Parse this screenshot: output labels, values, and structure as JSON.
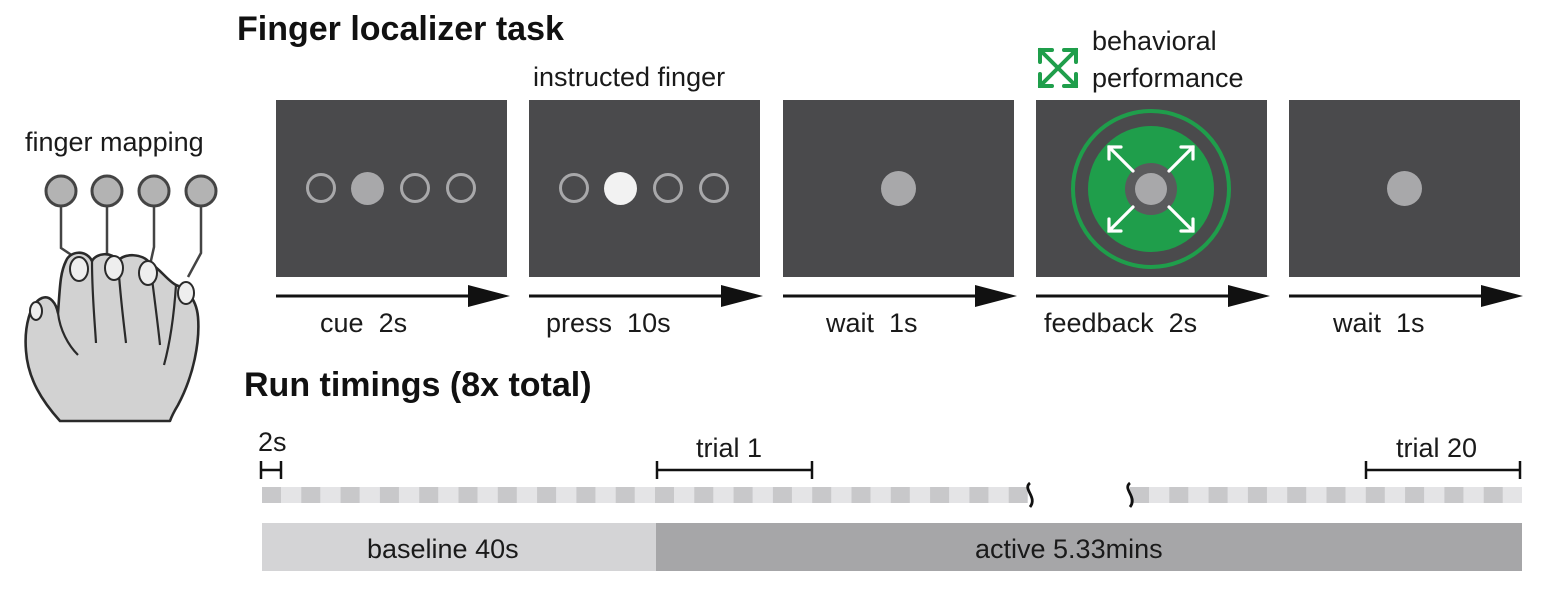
{
  "titles": {
    "task": "Finger localizer task",
    "run": "Run timings (8x total)"
  },
  "hand": {
    "label": "finger mapping",
    "button_count": 4
  },
  "annotations": {
    "instructed": "instructed finger",
    "behavioral_line1": "behavioral",
    "behavioral_line2": "performance"
  },
  "steps": [
    {
      "name": "cue",
      "duration": "2s"
    },
    {
      "name": "press",
      "duration": "10s"
    },
    {
      "name": "wait",
      "duration": "1s"
    },
    {
      "name": "feedback",
      "duration": "2s"
    },
    {
      "name": "wait",
      "duration": "1s"
    }
  ],
  "timeline": {
    "tick_label": "2s",
    "trial_first": "trial 1",
    "trial_last": "trial 20",
    "baseline_label": "baseline  40s",
    "active_label": "active  5.33mins"
  },
  "colors": {
    "screen": "#4a4a4c",
    "stimulus_gray": "#a8a8aa",
    "highlight": "#f2f2f2",
    "feedback_green": "#1f9e4b",
    "baseline_bar": "#d4d4d6",
    "active_bar": "#a6a6a8"
  }
}
